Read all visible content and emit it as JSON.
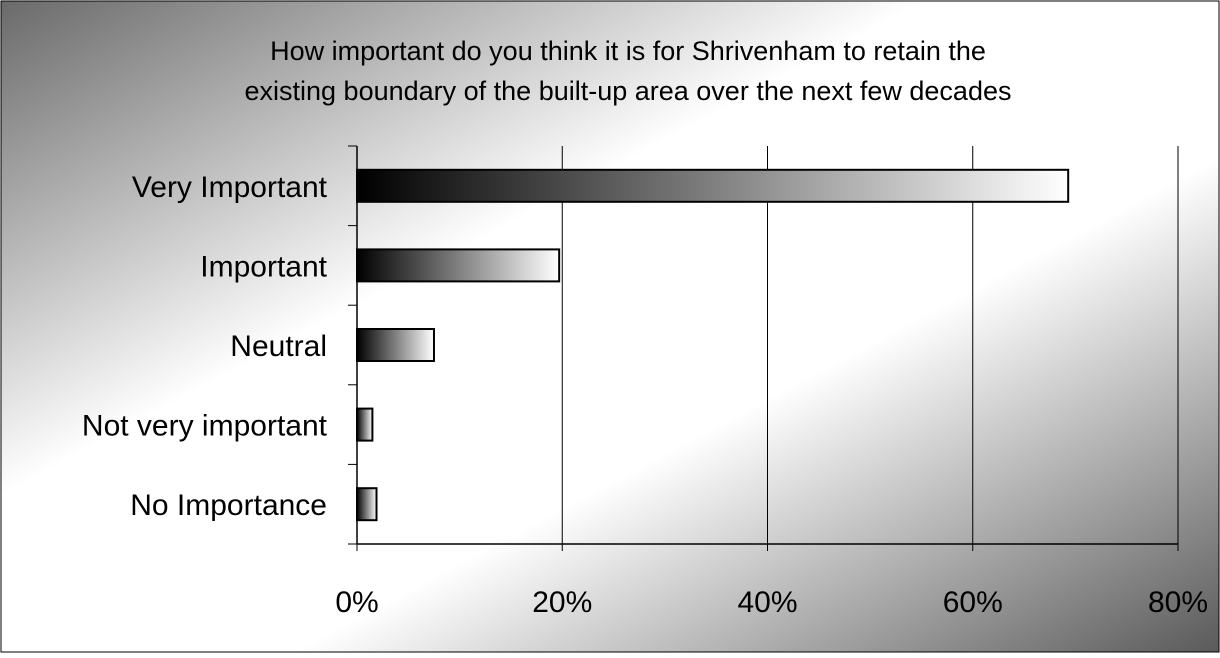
{
  "chart_data": {
    "type": "bar",
    "orientation": "horizontal",
    "title_lines": [
      "How important do you think it is for Shrivenham to retain the",
      "existing boundary of the built-up area over the next few decades"
    ],
    "categories": [
      "Very Important",
      "Important",
      "Neutral",
      "Not very important",
      "No Importance"
    ],
    "values": [
      69.3,
      19.7,
      7.5,
      1.5,
      1.9
    ],
    "value_unit": "%",
    "xlim": [
      0,
      80
    ],
    "xticks": [
      0,
      20,
      40,
      60,
      80
    ],
    "xtick_labels": [
      "0%",
      "20%",
      "40%",
      "60%",
      "80%"
    ],
    "grid": "vertical major gridlines",
    "legend": "none",
    "bar_fill": "horizontal gradient from black to white",
    "colors": {
      "bar_dark": "#000000",
      "bar_light": "#ffffff",
      "bar_outline": "#000000",
      "gridline": "#000000",
      "plot_area_background": "transparent",
      "chart_background_light": "#ffffff",
      "chart_background_dark": "#555555"
    }
  }
}
